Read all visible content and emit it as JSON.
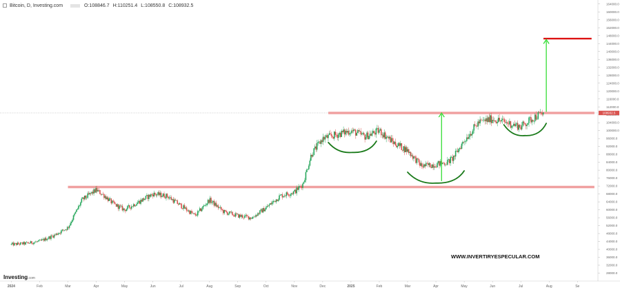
{
  "header": {
    "symbol": "Bitcoin, D, Investing.com",
    "open": "O:108846.7",
    "high": "H:110251.4",
    "low": "L:108550.8",
    "close": "C:108932.5"
  },
  "brand": {
    "name": "Investing",
    "suffix": ".com"
  },
  "watermark": "WWW.INVERTIRYESPECULAR.COM",
  "colors": {
    "up": "#26a65b",
    "down": "#d9534f",
    "resistance": "#f0a0a0",
    "target_line": "#dd1111",
    "arc": "#1a7a1a",
    "arrow": "#33dd33",
    "last_price_tag": "#d9534f"
  },
  "chart_data": {
    "type": "candlestick",
    "title": "Bitcoin, D, Investing.com",
    "ylim": [
      24000,
      166000
    ],
    "y_ticks": [
      28000,
      32000,
      36000,
      40000,
      44000,
      48000,
      52000,
      56000,
      60000,
      64000,
      68000,
      72000,
      76000,
      80000,
      84000,
      88000,
      92000,
      96000,
      100000,
      104000,
      108000,
      112000,
      116000,
      120000,
      124000,
      128000,
      132000,
      136000,
      140000,
      144000,
      148000,
      152000,
      156000,
      160000,
      164000
    ],
    "y_tick_labels": [
      "28000.0",
      "32000.0",
      "36000.0",
      "40000.0",
      "44000.0",
      "48000.0",
      "52000.0",
      "56000.0",
      "60000.0",
      "64000.0",
      "68000.0",
      "72000.0",
      "76000.0",
      "80000.0",
      "84000.0",
      "88000.0",
      "92000.0",
      "96000.0",
      "100000.0",
      "104000.0",
      "108000.0",
      "112000.0",
      "116000.0",
      "120000.0",
      "124000.0",
      "128000.0",
      "132000.0",
      "136000.0",
      "140000.0",
      "144000.0",
      "148000.0",
      "152000.0",
      "156000.0",
      "160000.0",
      "164000.0"
    ],
    "x_labels": [
      "2024",
      "Feb",
      "Mar",
      "Apr",
      "May",
      "Jun",
      "Jul",
      "Aug",
      "Sep",
      "Oct",
      "Nov",
      "Dec",
      "2025",
      "Feb",
      "Mar",
      "Apr",
      "May",
      "Jun",
      "Jul",
      "Aug",
      "Se"
    ],
    "x_months_index": [
      0,
      1,
      2,
      3,
      4,
      5,
      6,
      7,
      8,
      9,
      10,
      11,
      12,
      13,
      14,
      15,
      16,
      17,
      18,
      19,
      20
    ],
    "x_range_months": [
      -0.4,
      20.7
    ],
    "monthly_path": [
      [
        0,
        42500
      ],
      [
        0.5,
        43000
      ],
      [
        1,
        44000
      ],
      [
        1.5,
        47000
      ],
      [
        2,
        51000
      ],
      [
        2.5,
        65000
      ],
      [
        3,
        70000
      ],
      [
        3.3,
        67000
      ],
      [
        3.6,
        63000
      ],
      [
        4,
        60000
      ],
      [
        4.5,
        64000
      ],
      [
        5,
        68000
      ],
      [
        5.5,
        67000
      ],
      [
        6,
        62000
      ],
      [
        6.5,
        57000
      ],
      [
        7,
        65000
      ],
      [
        7.5,
        59000
      ],
      [
        8,
        57000
      ],
      [
        8.5,
        56000
      ],
      [
        9,
        61000
      ],
      [
        9.5,
        67000
      ],
      [
        10,
        69000
      ],
      [
        10.3,
        73000
      ],
      [
        10.6,
        88000
      ],
      [
        11,
        96000
      ],
      [
        11.5,
        98000
      ],
      [
        12,
        100000
      ],
      [
        12.5,
        97000
      ],
      [
        13,
        100000
      ],
      [
        13.5,
        94000
      ],
      [
        14,
        90000
      ],
      [
        14.5,
        82000
      ],
      [
        15,
        83000
      ],
      [
        15.4,
        84000
      ],
      [
        15.6,
        86000
      ],
      [
        16,
        95000
      ],
      [
        16.5,
        104000
      ],
      [
        17,
        106000
      ],
      [
        17.5,
        104000
      ],
      [
        18,
        102000
      ],
      [
        18.5,
        107000
      ],
      [
        18.8,
        108900
      ]
    ],
    "last_price": 108932.5,
    "annotations": {
      "resistance_upper": {
        "price": 108900,
        "from_month": 11.2,
        "to_month": 20.6
      },
      "resistance_lower": {
        "price": 71500,
        "from_month": 2.0,
        "to_month": 20.6
      },
      "target": {
        "price": 146500,
        "from_month": 18.8,
        "to_month": 20.5
      },
      "arcs": [
        {
          "from_month": 11.2,
          "to_month": 12.9,
          "top": 94000,
          "bottom": 89000
        },
        {
          "from_month": 14.0,
          "to_month": 16.0,
          "top": 79000,
          "bottom": 73500
        },
        {
          "from_month": 17.4,
          "to_month": 18.9,
          "top": 103000,
          "bottom": 97500
        }
      ],
      "arrows": [
        {
          "month": 15.2,
          "from": 74500,
          "to": 108900
        },
        {
          "month": 18.9,
          "from": 109500,
          "to": 146000
        }
      ]
    }
  }
}
